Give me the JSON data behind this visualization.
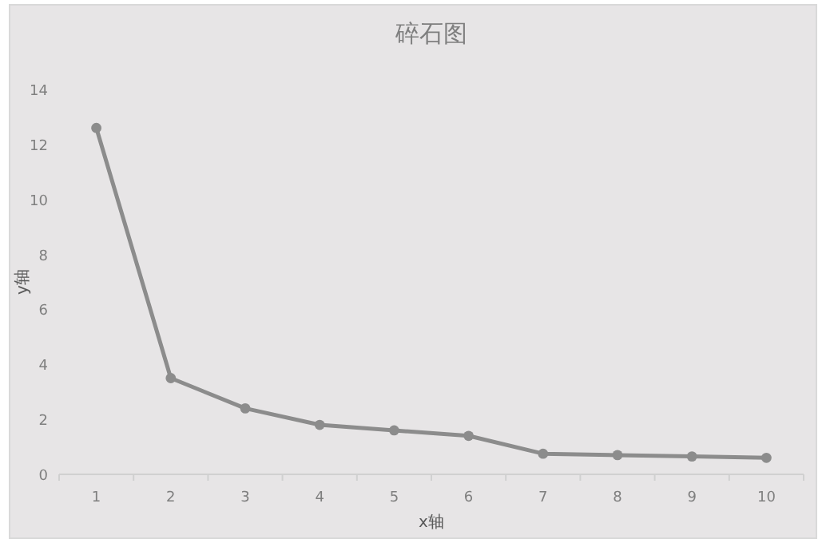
{
  "chart_data": {
    "type": "line",
    "title": "碎石图",
    "xlabel": "x轴",
    "ylabel": "y轴",
    "categories": [
      "1",
      "2",
      "3",
      "4",
      "5",
      "6",
      "7",
      "8",
      "9",
      "10"
    ],
    "series": [
      {
        "color": "#8c8c8c",
        "values": [
          12.6,
          3.5,
          2.4,
          1.8,
          1.6,
          1.4,
          0.75,
          0.7,
          0.65,
          0.6
        ]
      }
    ],
    "ylim": [
      0,
      14
    ],
    "yticks": [
      0,
      2,
      4,
      6,
      8,
      10,
      12,
      14
    ],
    "marker": "circle",
    "line_style": "solid",
    "grid": false
  }
}
